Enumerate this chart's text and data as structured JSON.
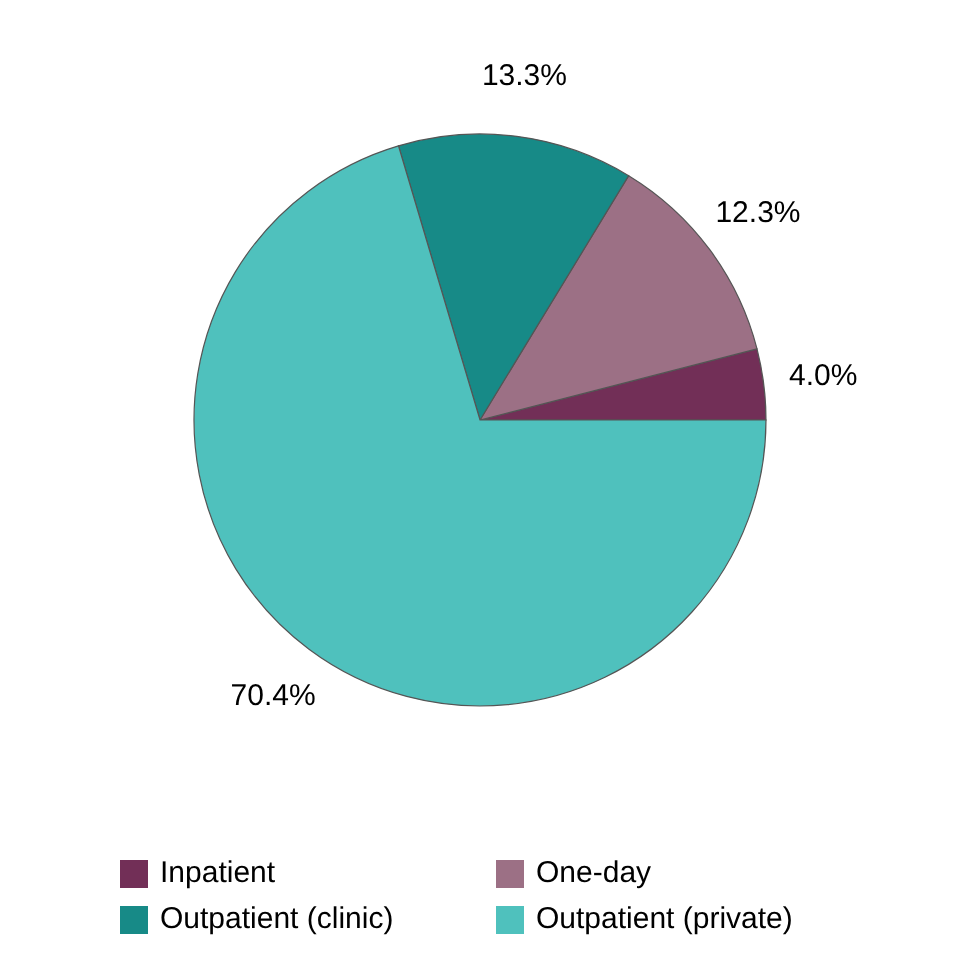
{
  "chart_data": {
    "type": "pie",
    "categories": [
      "Inpatient",
      "One-day",
      "Outpatient (clinic)",
      "Outpatient (private)"
    ],
    "values": [
      4.0,
      12.3,
      13.3,
      70.4
    ],
    "colors": [
      "#722f57",
      "#9c7085",
      "#178a87",
      "#4fc1bd"
    ],
    "value_labels": [
      "4.0%",
      "12.3%",
      "13.3%",
      "70.4%"
    ],
    "legend": "bottom"
  }
}
